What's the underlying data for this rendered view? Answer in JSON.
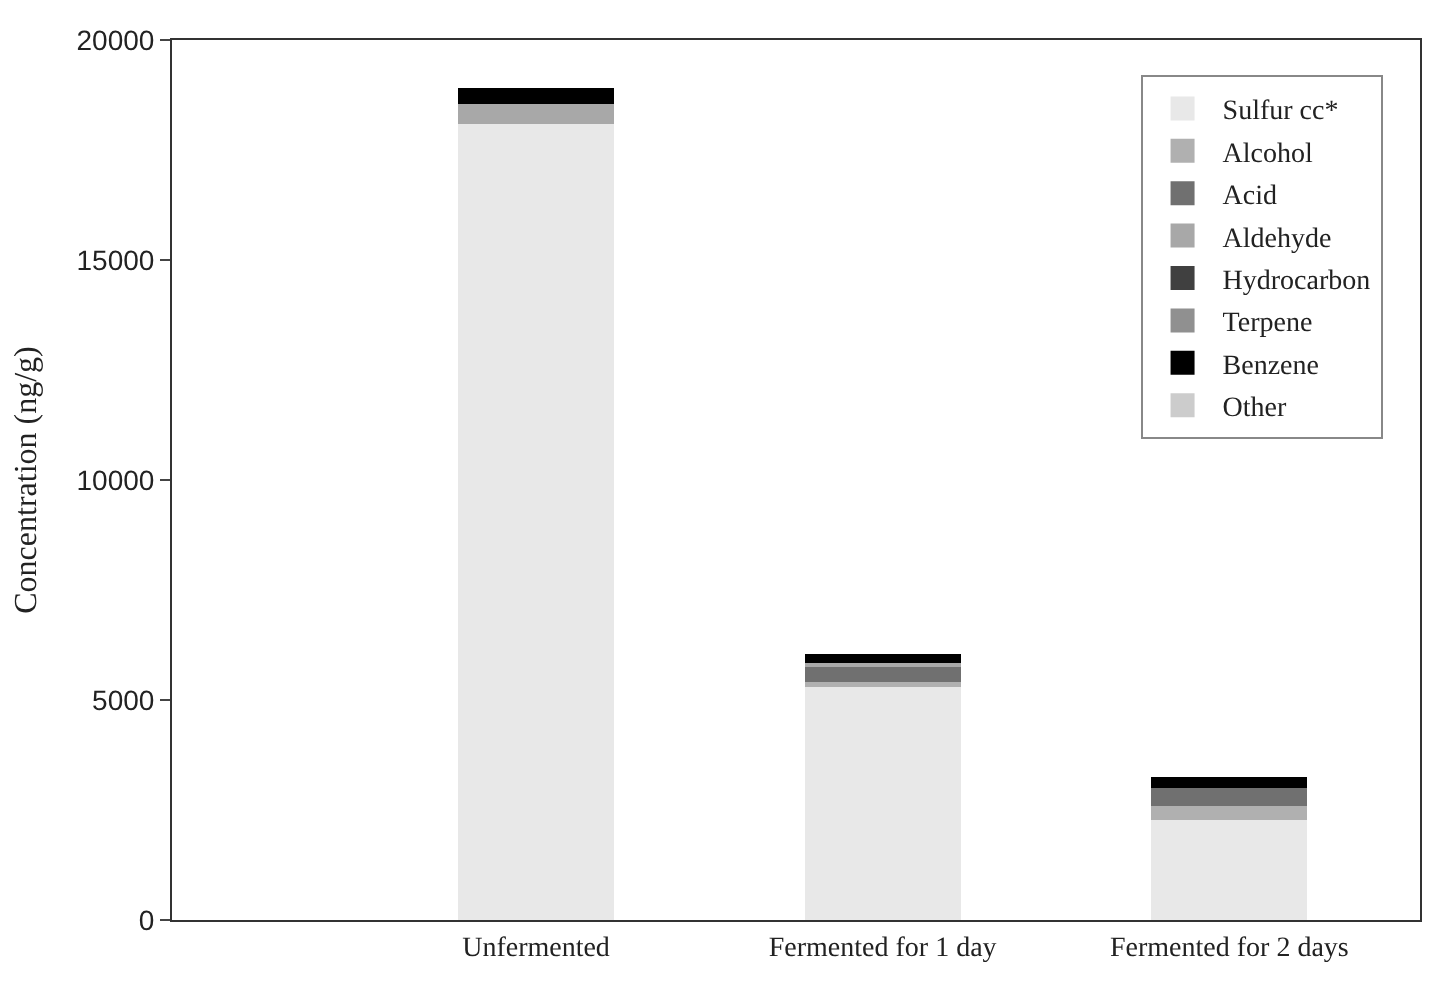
{
  "chart_data": {
    "type": "bar",
    "stacked": true,
    "ylabel": "Concentration (ng/g)",
    "categories": [
      "Unfermented",
      "Fermented for 1 day",
      "Fermented for 2 days"
    ],
    "series": [
      {
        "name": "Sulfur cc*",
        "color": "#e8e8e8",
        "values": [
          18100,
          5300,
          2270
        ]
      },
      {
        "name": "Alcohol",
        "color": "#b0b0b0",
        "values": [
          0,
          100,
          330
        ]
      },
      {
        "name": "Acid",
        "color": "#707070",
        "values": [
          0,
          350,
          400
        ]
      },
      {
        "name": "Aldehyde",
        "color": "#a8a8a8",
        "values": [
          450,
          100,
          0
        ]
      },
      {
        "name": "Hydrocarbon",
        "color": "#404040",
        "values": [
          0,
          0,
          0
        ]
      },
      {
        "name": "Terpene",
        "color": "#909090",
        "values": [
          0,
          0,
          0
        ]
      },
      {
        "name": "Benzene",
        "color": "#000000",
        "values": [
          350,
          200,
          240
        ]
      },
      {
        "name": "Other",
        "color": "#cccccc",
        "values": [
          0,
          0,
          0
        ]
      }
    ],
    "ylim": [
      0,
      20000
    ],
    "yticks": [
      0,
      5000,
      10000,
      15000,
      20000
    ],
    "legend": "top right"
  }
}
